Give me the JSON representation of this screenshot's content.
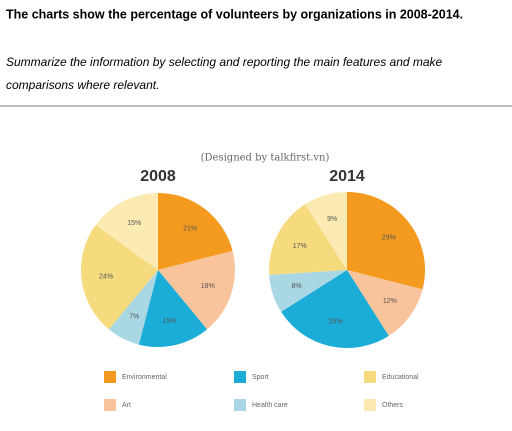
{
  "header": {
    "title": "The charts show the percentage of volunteers by organizations in 2008-2014."
  },
  "instructions": [
    "Summarize the information by selecting and reporting the main features and make",
    "comparisons where relevant."
  ],
  "credit": "(Designed by talkfirst.vn)",
  "legend": {
    "categories": [
      "Environmental",
      "Art",
      "Sport",
      "Health care",
      "Educational",
      "Others"
    ],
    "colors": [
      "#f39a1f",
      "#f9c49c",
      "#1badd8",
      "#a9d7e3",
      "#f5db7e",
      "#fbebb3"
    ]
  },
  "chart_data": [
    {
      "type": "pie",
      "title": "2008",
      "values": [
        21,
        18,
        15,
        7,
        24,
        15
      ],
      "value_labels": [
        "21%",
        "18%",
        "15%",
        "7%",
        "24%",
        "15%"
      ]
    },
    {
      "type": "pie",
      "title": "2014",
      "values": [
        29,
        12,
        25,
        8,
        17,
        9
      ],
      "value_labels": [
        "29%",
        "12%",
        "25%",
        "8%",
        "17%",
        "9%"
      ]
    }
  ]
}
